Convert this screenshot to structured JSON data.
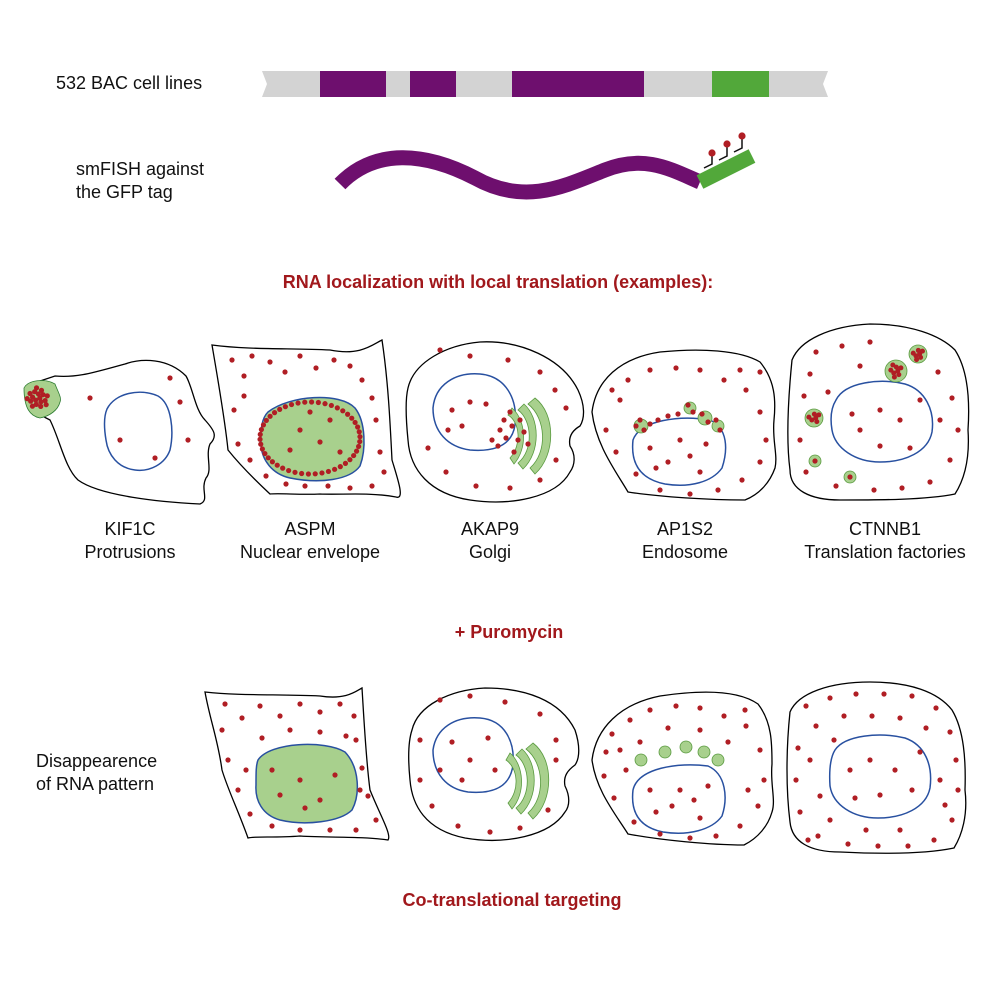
{
  "bac": {
    "label": "532 BAC cell lines"
  },
  "smfish": {
    "line1": "smFISH against",
    "line2": "the GFP tag"
  },
  "heading_local": "RNA localization with local translation (examples):",
  "cells": [
    {
      "gene": "KIF1C",
      "location": "Protrusions"
    },
    {
      "gene": "ASPM",
      "location": "Nuclear envelope"
    },
    {
      "gene": "AKAP9",
      "location": "Golgi"
    },
    {
      "gene": "AP1S2",
      "location": "Endosome"
    },
    {
      "gene": "CTNNB1",
      "location": "Translation factories"
    }
  ],
  "heading_puromycin": "+ Puromycin",
  "puromycin_note": {
    "line1": "Disappearence",
    "line2": "of RNA pattern"
  },
  "heading_cotranslational": "Co-translational targeting",
  "colors": {
    "purple": "#6e0f6e",
    "green": "#52a83a",
    "gray": "#d3d3d3",
    "rna_dot": "#b01e24",
    "nucleus_line": "#2850a0",
    "organelle_fill": "#a8d08d",
    "heading_red": "#a1181c"
  }
}
